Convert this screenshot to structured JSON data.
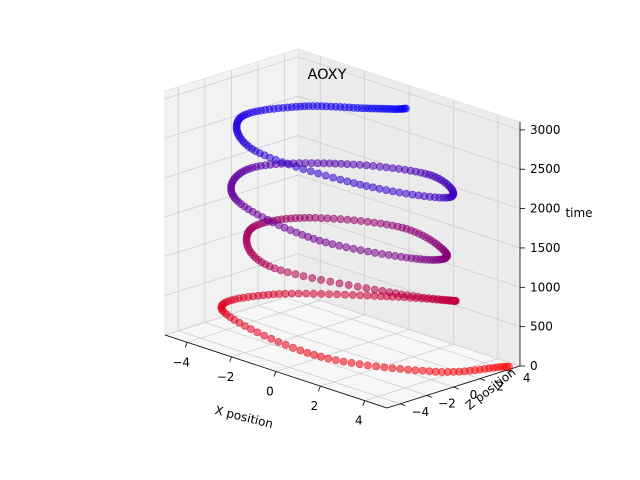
{
  "chart_data": {
    "type": "scatter3d",
    "title": "AOXY",
    "xlabel": "X position",
    "ylabel": "Z position",
    "zlabel": "time",
    "x_ticks": [
      "−4",
      "−2",
      "0",
      "2",
      "4"
    ],
    "y_ticks": [
      "−4",
      "−2",
      "0",
      "2",
      "4"
    ],
    "z_ticks": [
      "0",
      "500",
      "1000",
      "1500",
      "2000",
      "2500",
      "3000"
    ],
    "xlim": [
      -5,
      5
    ],
    "ylim": [
      -5,
      5
    ],
    "zlim": [
      0,
      3100
    ],
    "grid": true,
    "color_by": "time",
    "color_start": "#ff0000",
    "color_end": "#0000ff",
    "trajectory": {
      "t": [
        0,
        120,
        240,
        360,
        480,
        600,
        720,
        840,
        960,
        1080,
        1200,
        1320,
        1440,
        1560,
        1680,
        1800,
        1920,
        2040,
        2160,
        2280,
        2400,
        2520,
        2640,
        2760,
        2880,
        3000
      ],
      "x": [
        4.8,
        4.2,
        1.0,
        -3.5,
        -2.8,
        0.5,
        3.0,
        1.8,
        -2.2,
        -4.5,
        -3.5,
        0.0,
        3.5,
        3.8,
        0.8,
        -3.0,
        -4.2,
        -2.0,
        1.5,
        4.2,
        2.0,
        -2.0,
        -4.0,
        -2.8,
        -0.5,
        1.0
      ],
      "y": [
        4.5,
        0.0,
        -3.8,
        -3.2,
        -0.5,
        2.5,
        3.5,
        1.0,
        -1.8,
        0.5,
        3.0,
        4.5,
        2.0,
        -0.8,
        -3.5,
        -3.0,
        0.0,
        2.8,
        4.0,
        1.0,
        -2.0,
        -3.2,
        -1.0,
        1.5,
        2.8,
        3.2
      ]
    }
  }
}
